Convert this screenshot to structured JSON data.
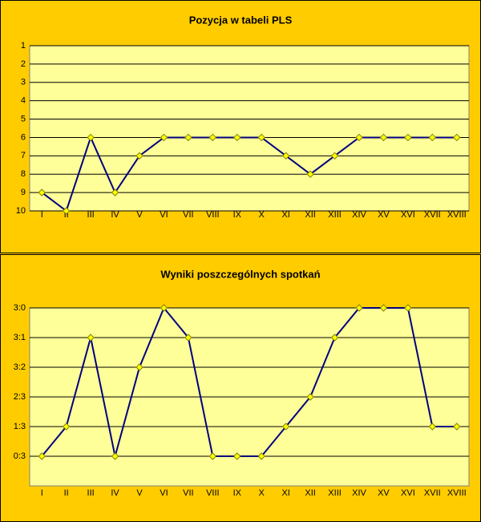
{
  "chart_data": [
    {
      "type": "line",
      "title": "Pozycja w tabeli PLS",
      "categories": [
        "I",
        "II",
        "III",
        "IV",
        "V",
        "VI",
        "VII",
        "VIII",
        "IX",
        "X",
        "XI",
        "XII",
        "XIII",
        "XIV",
        "XV",
        "XVI",
        "XVII",
        "XVIII"
      ],
      "values": [
        9,
        10,
        6,
        9,
        7,
        6,
        6,
        6,
        6,
        6,
        7,
        8,
        7,
        6,
        6,
        6,
        6,
        6
      ],
      "color": "#000080",
      "marker_color": "#ffff00",
      "ylim": [
        10,
        1
      ],
      "yticks": [
        1,
        2,
        3,
        4,
        5,
        6,
        7,
        8,
        9,
        10
      ],
      "grid": true
    },
    {
      "type": "line",
      "title": "Wyniki poszczególnych spotkań",
      "categories": [
        "I",
        "II",
        "III",
        "IV",
        "V",
        "VI",
        "VII",
        "VIII",
        "IX",
        "X",
        "XI",
        "XII",
        "XIII",
        "XIV",
        "XV",
        "XVI",
        "XVII",
        "XVIII"
      ],
      "values": [
        1,
        2,
        5,
        1,
        4,
        6,
        5,
        1,
        1,
        1,
        2,
        3,
        5,
        6,
        6,
        6,
        2,
        2
      ],
      "color": "#000080",
      "marker_color": "#ffff00",
      "ylim": [
        0,
        6
      ],
      "yticks": [
        {
          "value": 1,
          "label": "0:3"
        },
        {
          "value": 2,
          "label": "1:3"
        },
        {
          "value": 3,
          "label": "2:3"
        },
        {
          "value": 4,
          "label": "3:2"
        },
        {
          "value": 5,
          "label": "3:1"
        },
        {
          "value": 6,
          "label": "3:0"
        }
      ],
      "grid": true
    }
  ]
}
